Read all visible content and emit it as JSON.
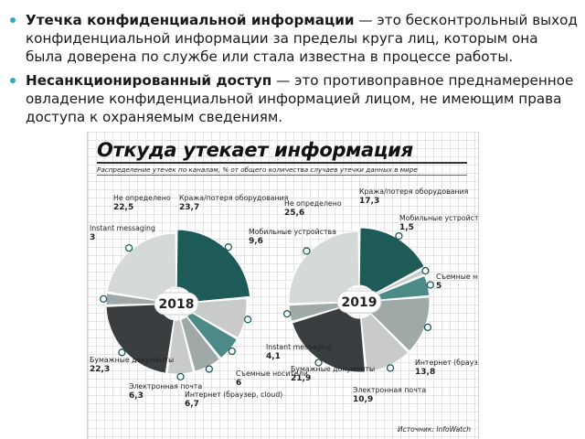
{
  "bullets": [
    {
      "term": "Утечка конфиденциальной информации",
      "text": " — это бесконтрольный выход конфиденциальной информации за пределы круга лиц, которым она была доверена по службе или стала известна в процессе работы."
    },
    {
      "term": "Несанкционированный доступ",
      "text": " — это противоправное преднамеренное овладение конфиденциальной информацией лицом, не имеющим права доступа к охраняемым сведениям."
    }
  ],
  "colors": {
    "dark_teal": "#1d5a58",
    "teal": "#4b8a87",
    "light_gray": "#c9cbcb",
    "mid_gray": "#9fa9a8",
    "charcoal": "#3b3e40",
    "pale": "#d6d9d9"
  },
  "chart_data": {
    "type": "donut",
    "title": "Откуда утекает информация",
    "subtitle": "Распределение утечек по каналам, % от общего количества случаев утечки данных в мире",
    "source": "Источник: InfoWatch",
    "charts": [
      {
        "year": "2018",
        "slices": [
          {
            "label": "Кража/потеря оборудования",
            "value": 23.7
          },
          {
            "label": "Мобильные устройства",
            "value": 9.6
          },
          {
            "label": "Съемные носители",
            "value": 6
          },
          {
            "label": "Интернет (браузер, cloud)",
            "value": 6.7
          },
          {
            "label": "Электронная почта",
            "value": 6.3
          },
          {
            "label": "Бумажные документы",
            "value": 22.3
          },
          {
            "label": "Instant messaging",
            "value": 3
          },
          {
            "label": "Не определено",
            "value": 22.5
          }
        ]
      },
      {
        "year": "2019",
        "slices": [
          {
            "label": "Кража/потеря оборудования",
            "value": 17.3
          },
          {
            "label": "Мобильные устройства",
            "value": 1.5
          },
          {
            "label": "Съемные носители",
            "value": 5
          },
          {
            "label": "Интернет (браузер, cloud)",
            "value": 13.8
          },
          {
            "label": "Электронная почта",
            "value": 10.9
          },
          {
            "label": "Бумажные документы",
            "value": 21.9
          },
          {
            "label": "Instant messaging",
            "value": 4.1
          },
          {
            "label": "Не определено",
            "value": 25.6
          }
        ]
      }
    ]
  }
}
